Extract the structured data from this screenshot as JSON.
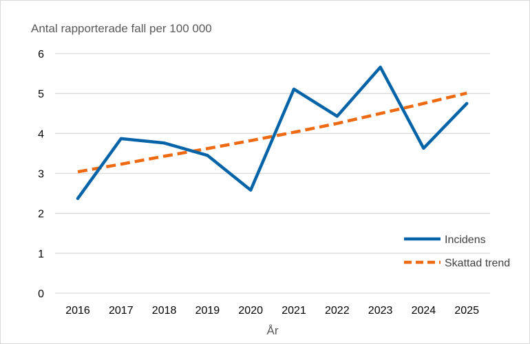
{
  "chart_data": {
    "type": "line",
    "title": "",
    "ylabel": "Antal rapporterade fall per 100 000",
    "xlabel": "År",
    "x": [
      "2016",
      "2017",
      "2018",
      "2019",
      "2020",
      "2021",
      "2022",
      "2023",
      "2024",
      "2025"
    ],
    "ylim": [
      0,
      6
    ],
    "yticks": [
      "0",
      "1",
      "2",
      "3",
      "4",
      "5",
      "6"
    ],
    "grid": true,
    "legend_position": "bottom-right",
    "series": [
      {
        "name": "Incidens",
        "values": [
          2.37,
          3.87,
          3.76,
          3.45,
          2.58,
          5.11,
          4.43,
          5.66,
          3.63,
          4.75
        ],
        "color": "#0563a8",
        "style": "solid"
      },
      {
        "name": "Skattad trend",
        "values": [
          3.04,
          3.23,
          3.43,
          3.62,
          3.82,
          4.03,
          4.25,
          4.5,
          4.75,
          5.01
        ],
        "color": "#ee6a12",
        "style": "dashed"
      }
    ]
  }
}
